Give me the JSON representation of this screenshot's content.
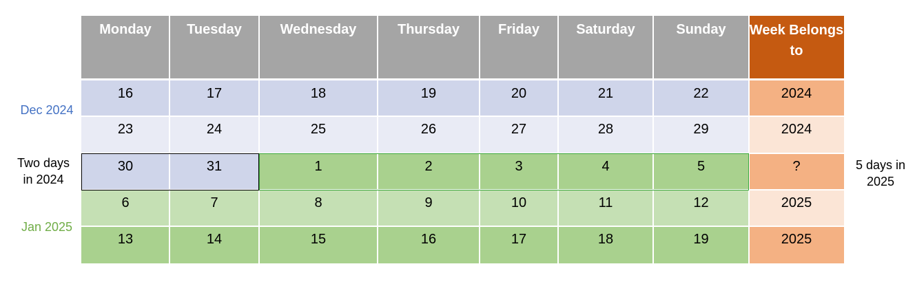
{
  "colors": {
    "header": "#a5a5a5",
    "week_header": "#c55a11",
    "dec_dark": "#cfd5ea",
    "dec_light": "#e9ebf5",
    "jan_dark": "#a9d18e",
    "jan_light": "#c5e0b4",
    "week_dark": "#f4b183",
    "week_light": "#fbe5d6",
    "dec_label": "#4472c4",
    "jan_label": "#70ad47"
  },
  "headers": [
    "Monday",
    "Tuesday",
    "Wednesday",
    "Thursday",
    "Friday",
    "Saturday",
    "Sunday"
  ],
  "week_header": "Week Belongs to",
  "rows": [
    {
      "days": [
        "16",
        "17",
        "18",
        "19",
        "20",
        "21",
        "22"
      ],
      "week": "2024"
    },
    {
      "days": [
        "23",
        "24",
        "25",
        "26",
        "27",
        "28",
        "29"
      ],
      "week": "2024"
    },
    {
      "days": [
        "30",
        "31",
        "1",
        "2",
        "3",
        "4",
        "5"
      ],
      "week": "?"
    },
    {
      "days": [
        "6",
        "7",
        "8",
        "9",
        "10",
        "11",
        "12"
      ],
      "week": "2025"
    },
    {
      "days": [
        "13",
        "14",
        "15",
        "16",
        "17",
        "18",
        "19"
      ],
      "week": "2025"
    }
  ],
  "labels": {
    "dec": "Dec 2024",
    "jan": "Jan 2025",
    "two_days": "Two days in 2024",
    "five_days": "5 days in 2025"
  }
}
